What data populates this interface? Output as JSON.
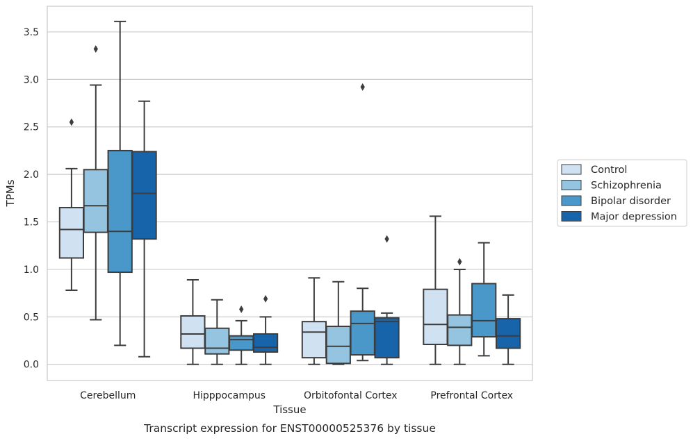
{
  "caption": "Transcript expression for ENST00000525376 by tissue",
  "chart_data": {
    "type": "box",
    "xlabel": "Tissue",
    "ylabel": "TPMs",
    "ylim": [
      -0.17,
      3.77
    ],
    "yticks": [
      0.0,
      0.5,
      1.0,
      1.5,
      2.0,
      2.5,
      3.0,
      3.5
    ],
    "ytick_labels": [
      "0.0",
      "0.5",
      "1.0",
      "1.5",
      "2.0",
      "2.5",
      "3.0",
      "3.5"
    ],
    "grid": "horizontal",
    "legend_position": "outside-right",
    "categories": [
      "Cerebellum",
      "Hipppocampus",
      "Orbitofontal Cortex",
      "Prefrontal Cortex"
    ],
    "series": [
      {
        "name": "Control",
        "color": "#d0e1f2",
        "boxes": [
          {
            "whisker_low": 0.78,
            "q1": 1.12,
            "median": 1.42,
            "q3": 1.65,
            "whisker_high": 2.06,
            "outliers": [
              2.55
            ]
          },
          {
            "whisker_low": 0.0,
            "q1": 0.17,
            "median": 0.32,
            "q3": 0.51,
            "whisker_high": 0.89,
            "outliers": []
          },
          {
            "whisker_low": 0.0,
            "q1": 0.07,
            "median": 0.34,
            "q3": 0.45,
            "whisker_high": 0.91,
            "outliers": []
          },
          {
            "whisker_low": 0.0,
            "q1": 0.21,
            "median": 0.42,
            "q3": 0.79,
            "whisker_high": 1.56,
            "outliers": []
          }
        ]
      },
      {
        "name": "Schizophrenia",
        "color": "#94c4df",
        "boxes": [
          {
            "whisker_low": 0.47,
            "q1": 1.39,
            "median": 1.67,
            "q3": 2.05,
            "whisker_high": 2.94,
            "outliers": [
              3.32
            ]
          },
          {
            "whisker_low": 0.0,
            "q1": 0.11,
            "median": 0.17,
            "q3": 0.38,
            "whisker_high": 0.68,
            "outliers": []
          },
          {
            "whisker_low": 0.0,
            "q1": 0.01,
            "median": 0.19,
            "q3": 0.4,
            "whisker_high": 0.87,
            "outliers": []
          },
          {
            "whisker_low": 0.0,
            "q1": 0.2,
            "median": 0.39,
            "q3": 0.52,
            "whisker_high": 1.0,
            "outliers": [
              1.08
            ]
          }
        ]
      },
      {
        "name": "Bipolar disorder",
        "color": "#4a98c9",
        "boxes": [
          {
            "whisker_low": 0.2,
            "q1": 0.97,
            "median": 1.4,
            "q3": 2.25,
            "whisker_high": 3.61,
            "outliers": []
          },
          {
            "whisker_low": 0.0,
            "q1": 0.15,
            "median": 0.26,
            "q3": 0.3,
            "whisker_high": 0.46,
            "outliers": [
              0.58
            ]
          },
          {
            "whisker_low": 0.04,
            "q1": 0.1,
            "median": 0.43,
            "q3": 0.56,
            "whisker_high": 0.8,
            "outliers": [
              2.92
            ]
          },
          {
            "whisker_low": 0.09,
            "q1": 0.29,
            "median": 0.46,
            "q3": 0.85,
            "whisker_high": 1.28,
            "outliers": []
          }
        ]
      },
      {
        "name": "Major depression",
        "color": "#1764ab",
        "boxes": [
          {
            "whisker_low": 0.08,
            "q1": 1.32,
            "median": 1.8,
            "q3": 2.24,
            "whisker_high": 2.77,
            "outliers": []
          },
          {
            "whisker_low": 0.0,
            "q1": 0.13,
            "median": 0.18,
            "q3": 0.32,
            "whisker_high": 0.5,
            "outliers": [
              0.69
            ]
          },
          {
            "whisker_low": 0.0,
            "q1": 0.07,
            "median": 0.45,
            "q3": 0.49,
            "whisker_high": 0.54,
            "outliers": [
              1.32
            ]
          },
          {
            "whisker_low": 0.0,
            "q1": 0.17,
            "median": 0.3,
            "q3": 0.48,
            "whisker_high": 0.73,
            "outliers": []
          }
        ]
      }
    ]
  }
}
